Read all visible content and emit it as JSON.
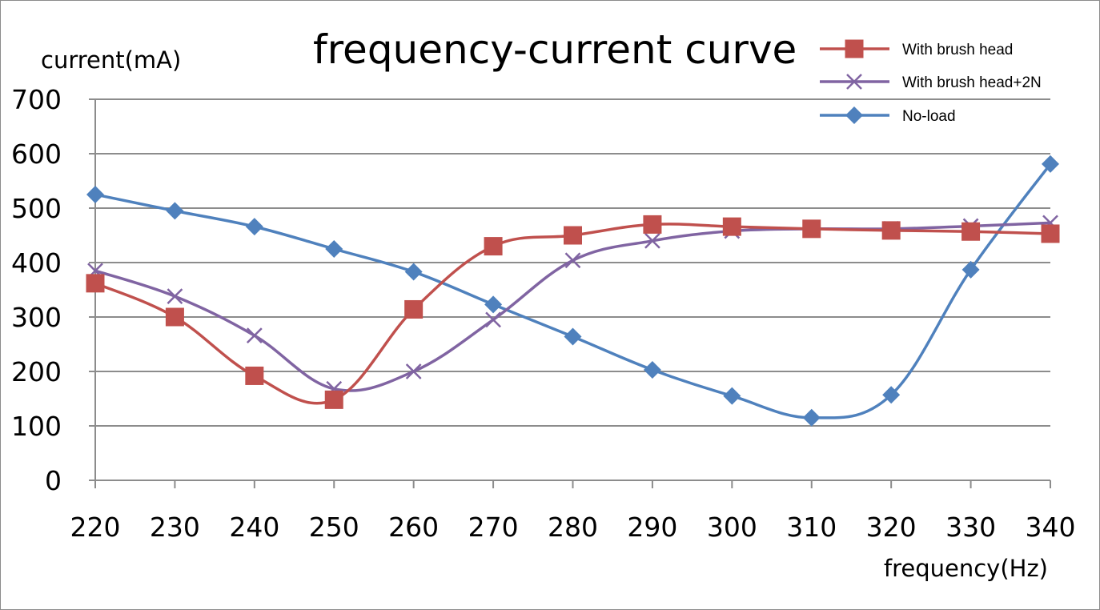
{
  "chart_data": {
    "type": "line",
    "title": "frequency-current curve",
    "xlabel": "frequency(Hz)",
    "ylabel": "current(mA)",
    "x": [
      220,
      230,
      240,
      250,
      260,
      270,
      280,
      290,
      300,
      310,
      320,
      330,
      340
    ],
    "xlim": [
      220,
      340
    ],
    "ylim": [
      0,
      700
    ],
    "yticks": [
      0,
      100,
      200,
      300,
      400,
      500,
      600,
      700
    ],
    "grid": true,
    "legend_position": "top-right",
    "smooth": true,
    "series": [
      {
        "name": "With brush head",
        "color": "#c0504d",
        "marker": "square",
        "values": [
          362,
          300,
          192,
          148,
          314,
          430,
          450,
          470,
          466,
          462,
          459,
          457,
          453
        ]
      },
      {
        "name": "With brush head+2N",
        "color": "#8064a2",
        "marker": "x",
        "values": [
          385,
          338,
          266,
          168,
          200,
          295,
          404,
          440,
          458,
          462,
          462,
          467,
          473
        ]
      },
      {
        "name": "No-load",
        "color": "#4f81bd",
        "marker": "diamond",
        "values": [
          525,
          495,
          466,
          425,
          383,
          323,
          264,
          203,
          155,
          115,
          157,
          387,
          581
        ]
      }
    ]
  }
}
